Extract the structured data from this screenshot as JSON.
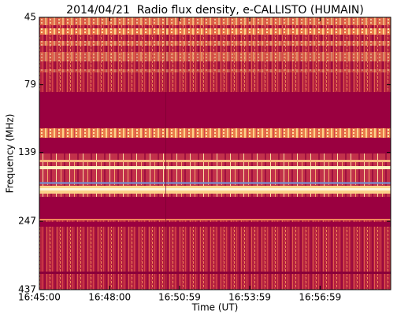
{
  "chart_data": {
    "type": "spectrogram",
    "title": "2014/04/21  Radio flux density, e-CALLISTO (HUMAIN)",
    "x_label": "Time (UT)",
    "y_label": "Frequency (MHz)",
    "xlim": [
      "16:45:00",
      "17:00:00"
    ],
    "xticks": [
      "16:45:00",
      "16:48:00",
      "16:50:59",
      "16:53:59",
      "16:56:59"
    ],
    "ylim": [
      437,
      45
    ],
    "yticks": [
      45,
      79,
      139,
      247,
      437
    ],
    "y_scale": "log"
  }
}
